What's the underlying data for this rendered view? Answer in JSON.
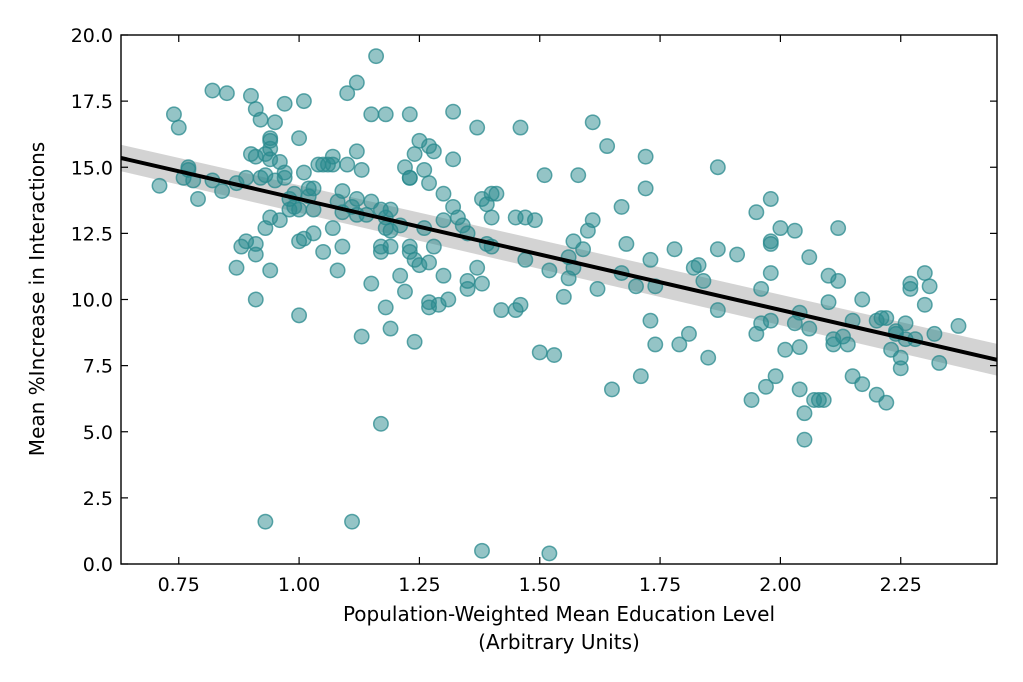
{
  "chart_data": {
    "type": "scatter",
    "xlabel_lines": [
      "Population-Weighted Mean Education Level",
      "(Arbitrary Units)"
    ],
    "ylabel": "Mean %Increase in Interactions",
    "xlim": [
      0.63,
      2.45
    ],
    "ylim": [
      0.0,
      20.0
    ],
    "xticks": [
      "0.75",
      "1.00",
      "1.25",
      "1.50",
      "1.75",
      "2.00",
      "2.25"
    ],
    "xtick_values": [
      0.75,
      1.0,
      1.25,
      1.5,
      1.75,
      2.0,
      2.25
    ],
    "yticks": [
      "0.0",
      "2.5",
      "5.0",
      "7.5",
      "10.0",
      "12.5",
      "15.0",
      "17.5",
      "20.0"
    ],
    "ytick_values": [
      0.0,
      2.5,
      5.0,
      7.5,
      10.0,
      12.5,
      15.0,
      17.5,
      20.0
    ],
    "grid": false,
    "marker_color": "#2a8a8e",
    "line_color": "#000000",
    "band_color": "#c8c8c8",
    "regression": {
      "x": [
        0.63,
        2.45
      ],
      "y": [
        15.35,
        7.72
      ],
      "ci_upper": [
        15.85,
        8.32
      ],
      "ci_lower": [
        14.85,
        7.12
      ]
    },
    "points": [
      [
        0.71,
        14.3
      ],
      [
        0.74,
        17.0
      ],
      [
        0.75,
        16.5
      ],
      [
        0.76,
        14.6
      ],
      [
        0.77,
        14.9
      ],
      [
        0.77,
        15.0
      ],
      [
        0.78,
        14.5
      ],
      [
        0.79,
        13.8
      ],
      [
        0.82,
        17.9
      ],
      [
        0.82,
        14.5
      ],
      [
        0.84,
        14.1
      ],
      [
        0.85,
        17.8
      ],
      [
        0.87,
        14.4
      ],
      [
        0.87,
        11.2
      ],
      [
        0.88,
        12.0
      ],
      [
        0.89,
        14.6
      ],
      [
        0.89,
        12.2
      ],
      [
        0.9,
        17.7
      ],
      [
        0.9,
        15.5
      ],
      [
        0.91,
        17.2
      ],
      [
        0.91,
        15.4
      ],
      [
        0.91,
        12.1
      ],
      [
        0.91,
        11.7
      ],
      [
        0.91,
        10.0
      ],
      [
        0.92,
        16.8
      ],
      [
        0.92,
        14.6
      ],
      [
        0.93,
        15.5
      ],
      [
        0.93,
        14.7
      ],
      [
        0.93,
        12.7
      ],
      [
        0.93,
        1.6
      ],
      [
        0.94,
        16.0
      ],
      [
        0.94,
        16.1
      ],
      [
        0.94,
        15.7
      ],
      [
        0.94,
        15.3
      ],
      [
        0.94,
        13.1
      ],
      [
        0.94,
        11.1
      ],
      [
        0.95,
        16.7
      ],
      [
        0.95,
        14.5
      ],
      [
        0.96,
        15.2
      ],
      [
        0.96,
        13.0
      ],
      [
        0.97,
        17.4
      ],
      [
        0.97,
        14.8
      ],
      [
        0.97,
        14.6
      ],
      [
        0.98,
        13.8
      ],
      [
        0.98,
        13.4
      ],
      [
        0.99,
        14.0
      ],
      [
        0.99,
        13.5
      ],
      [
        1.0,
        16.1
      ],
      [
        1.0,
        13.4
      ],
      [
        1.0,
        12.2
      ],
      [
        1.0,
        9.4
      ],
      [
        1.01,
        17.5
      ],
      [
        1.01,
        14.8
      ],
      [
        1.01,
        12.3
      ],
      [
        1.02,
        14.2
      ],
      [
        1.02,
        13.9
      ],
      [
        1.03,
        14.2
      ],
      [
        1.03,
        13.4
      ],
      [
        1.03,
        12.5
      ],
      [
        1.04,
        15.1
      ],
      [
        1.05,
        15.1
      ],
      [
        1.05,
        11.8
      ],
      [
        1.06,
        15.1
      ],
      [
        1.07,
        15.1
      ],
      [
        1.07,
        15.4
      ],
      [
        1.07,
        12.7
      ],
      [
        1.08,
        13.7
      ],
      [
        1.08,
        11.1
      ],
      [
        1.09,
        14.1
      ],
      [
        1.09,
        13.3
      ],
      [
        1.09,
        12.0
      ],
      [
        1.1,
        17.8
      ],
      [
        1.1,
        15.1
      ],
      [
        1.11,
        13.5
      ],
      [
        1.11,
        1.6
      ],
      [
        1.12,
        18.2
      ],
      [
        1.12,
        15.6
      ],
      [
        1.12,
        13.8
      ],
      [
        1.12,
        13.2
      ],
      [
        1.13,
        14.9
      ],
      [
        1.13,
        8.6
      ],
      [
        1.14,
        13.2
      ],
      [
        1.15,
        10.6
      ],
      [
        1.15,
        17.0
      ],
      [
        1.15,
        13.7
      ],
      [
        1.16,
        19.2
      ],
      [
        1.17,
        13.4
      ],
      [
        1.17,
        12.0
      ],
      [
        1.17,
        11.8
      ],
      [
        1.17,
        5.3
      ],
      [
        1.18,
        17.0
      ],
      [
        1.18,
        13.1
      ],
      [
        1.18,
        12.7
      ],
      [
        1.18,
        9.7
      ],
      [
        1.19,
        13.4
      ],
      [
        1.19,
        12.6
      ],
      [
        1.19,
        12.0
      ],
      [
        1.19,
        8.9
      ],
      [
        1.21,
        12.8
      ],
      [
        1.21,
        10.9
      ],
      [
        1.22,
        15.0
      ],
      [
        1.22,
        10.3
      ],
      [
        1.23,
        14.6
      ],
      [
        1.23,
        14.6
      ],
      [
        1.23,
        17.0
      ],
      [
        1.23,
        12.0
      ],
      [
        1.23,
        11.8
      ],
      [
        1.24,
        15.5
      ],
      [
        1.24,
        11.5
      ],
      [
        1.24,
        8.4
      ],
      [
        1.25,
        16.0
      ],
      [
        1.25,
        11.3
      ],
      [
        1.26,
        14.9
      ],
      [
        1.26,
        12.7
      ],
      [
        1.27,
        15.8
      ],
      [
        1.27,
        14.4
      ],
      [
        1.27,
        11.4
      ],
      [
        1.27,
        9.9
      ],
      [
        1.27,
        9.7
      ],
      [
        1.28,
        15.6
      ],
      [
        1.28,
        12.0
      ],
      [
        1.29,
        9.8
      ],
      [
        1.3,
        14.0
      ],
      [
        1.3,
        13.0
      ],
      [
        1.3,
        10.9
      ],
      [
        1.31,
        10.0
      ],
      [
        1.32,
        17.1
      ],
      [
        1.32,
        15.3
      ],
      [
        1.32,
        13.5
      ],
      [
        1.33,
        13.1
      ],
      [
        1.34,
        12.8
      ],
      [
        1.35,
        12.5
      ],
      [
        1.35,
        10.7
      ],
      [
        1.35,
        10.4
      ],
      [
        1.37,
        16.5
      ],
      [
        1.37,
        11.2
      ],
      [
        1.38,
        13.8
      ],
      [
        1.38,
        10.6
      ],
      [
        1.38,
        0.5
      ],
      [
        1.39,
        13.6
      ],
      [
        1.39,
        12.1
      ],
      [
        1.4,
        14.0
      ],
      [
        1.4,
        13.1
      ],
      [
        1.4,
        12.0
      ],
      [
        1.41,
        14.0
      ],
      [
        1.42,
        9.6
      ],
      [
        1.45,
        13.1
      ],
      [
        1.45,
        9.6
      ],
      [
        1.46,
        16.5
      ],
      [
        1.46,
        9.8
      ],
      [
        1.47,
        13.1
      ],
      [
        1.47,
        11.5
      ],
      [
        1.49,
        13.0
      ],
      [
        1.5,
        8.0
      ],
      [
        1.51,
        14.7
      ],
      [
        1.52,
        11.1
      ],
      [
        1.52,
        0.4
      ],
      [
        1.53,
        7.9
      ],
      [
        1.55,
        10.1
      ],
      [
        1.56,
        11.6
      ],
      [
        1.56,
        10.8
      ],
      [
        1.57,
        12.2
      ],
      [
        1.57,
        11.2
      ],
      [
        1.58,
        14.7
      ],
      [
        1.59,
        11.9
      ],
      [
        1.6,
        12.6
      ],
      [
        1.61,
        16.7
      ],
      [
        1.61,
        13.0
      ],
      [
        1.62,
        10.4
      ],
      [
        1.64,
        15.8
      ],
      [
        1.65,
        6.6
      ],
      [
        1.67,
        13.5
      ],
      [
        1.67,
        11.0
      ],
      [
        1.68,
        12.1
      ],
      [
        1.7,
        10.5
      ],
      [
        1.71,
        7.1
      ],
      [
        1.72,
        15.4
      ],
      [
        1.72,
        14.2
      ],
      [
        1.73,
        11.5
      ],
      [
        1.73,
        9.2
      ],
      [
        1.74,
        10.5
      ],
      [
        1.74,
        8.3
      ],
      [
        1.78,
        11.9
      ],
      [
        1.79,
        8.3
      ],
      [
        1.81,
        8.7
      ],
      [
        1.82,
        11.2
      ],
      [
        1.83,
        11.3
      ],
      [
        1.84,
        10.7
      ],
      [
        1.85,
        7.8
      ],
      [
        1.87,
        15.0
      ],
      [
        1.87,
        11.9
      ],
      [
        1.87,
        9.6
      ],
      [
        1.91,
        11.7
      ],
      [
        1.94,
        6.2
      ],
      [
        1.95,
        13.3
      ],
      [
        1.95,
        8.7
      ],
      [
        1.96,
        10.4
      ],
      [
        1.96,
        9.1
      ],
      [
        1.97,
        6.7
      ],
      [
        1.98,
        13.8
      ],
      [
        1.98,
        12.2
      ],
      [
        1.98,
        12.1
      ],
      [
        1.98,
        11.0
      ],
      [
        1.98,
        9.2
      ],
      [
        1.99,
        7.1
      ],
      [
        2.0,
        12.7
      ],
      [
        2.01,
        8.1
      ],
      [
        2.03,
        12.6
      ],
      [
        2.03,
        9.1
      ],
      [
        2.04,
        9.5
      ],
      [
        2.04,
        8.2
      ],
      [
        2.04,
        6.6
      ],
      [
        2.05,
        5.7
      ],
      [
        2.05,
        4.7
      ],
      [
        2.06,
        11.6
      ],
      [
        2.06,
        8.9
      ],
      [
        2.07,
        6.2
      ],
      [
        2.08,
        6.2
      ],
      [
        2.09,
        6.2
      ],
      [
        2.1,
        10.9
      ],
      [
        2.1,
        9.9
      ],
      [
        2.11,
        8.5
      ],
      [
        2.11,
        8.3
      ],
      [
        2.12,
        12.7
      ],
      [
        2.12,
        10.7
      ],
      [
        2.13,
        8.6
      ],
      [
        2.14,
        8.3
      ],
      [
        2.15,
        9.2
      ],
      [
        2.15,
        7.1
      ],
      [
        2.17,
        10.0
      ],
      [
        2.17,
        6.8
      ],
      [
        2.2,
        9.2
      ],
      [
        2.2,
        6.4
      ],
      [
        2.21,
        9.3
      ],
      [
        2.22,
        9.3
      ],
      [
        2.22,
        6.1
      ],
      [
        2.23,
        8.1
      ],
      [
        2.24,
        8.8
      ],
      [
        2.24,
        8.7
      ],
      [
        2.25,
        7.8
      ],
      [
        2.25,
        7.4
      ],
      [
        2.26,
        9.1
      ],
      [
        2.26,
        8.5
      ],
      [
        2.27,
        10.6
      ],
      [
        2.27,
        10.4
      ],
      [
        2.28,
        8.5
      ],
      [
        2.3,
        11.0
      ],
      [
        2.3,
        9.8
      ],
      [
        2.31,
        10.5
      ],
      [
        2.32,
        8.7
      ],
      [
        2.33,
        7.6
      ],
      [
        2.37,
        9.0
      ]
    ]
  }
}
